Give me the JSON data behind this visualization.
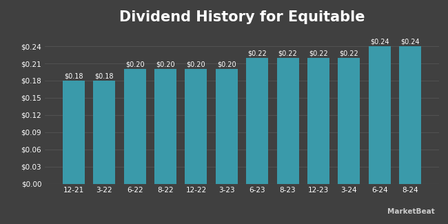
{
  "title": "Dividend History for Equitable",
  "categories": [
    "12-21",
    "3-22",
    "6-22",
    "8-22",
    "12-22",
    "3-23",
    "6-23",
    "8-23",
    "12-23",
    "3-24",
    "6-24",
    "8-24"
  ],
  "values": [
    0.18,
    0.18,
    0.2,
    0.2,
    0.2,
    0.2,
    0.22,
    0.22,
    0.22,
    0.22,
    0.24,
    0.24
  ],
  "bar_color": "#3a9aaa",
  "background_color": "#404040",
  "plot_bg_color": "#404040",
  "grid_color": "#555555",
  "text_color": "#ffffff",
  "title_fontsize": 15,
  "tick_fontsize": 7.5,
  "bar_label_fontsize": 7,
  "ylim": [
    0,
    0.27
  ],
  "yticks": [
    0.0,
    0.03,
    0.06,
    0.09,
    0.12,
    0.15,
    0.18,
    0.21,
    0.24
  ],
  "bar_width": 0.72,
  "watermark": "MarketBeat"
}
